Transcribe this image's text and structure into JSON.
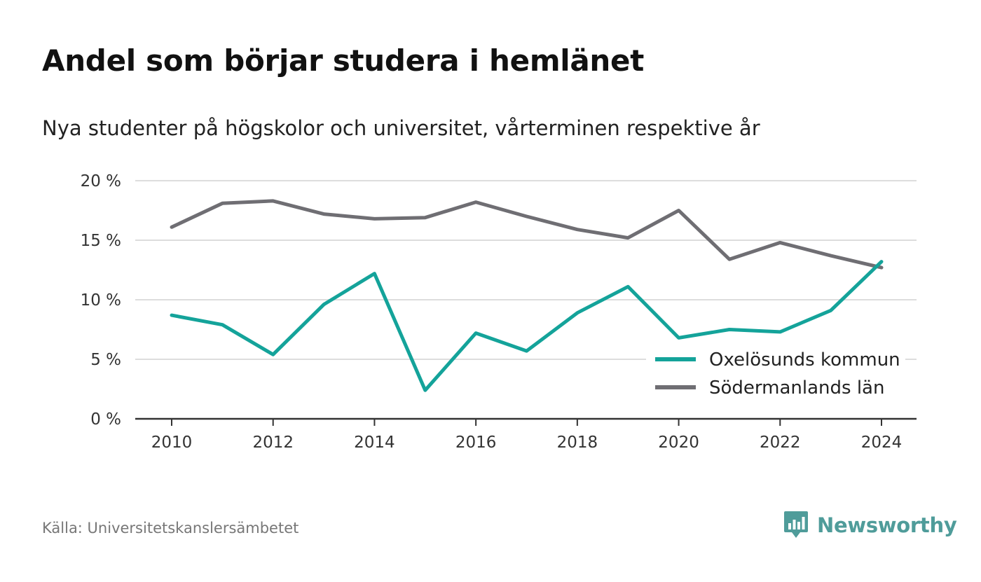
{
  "colors": {
    "oxelosund": "#14a39a",
    "sodermanland": "#6f6e73",
    "brand": "#4f9c9a"
  },
  "chart_data": {
    "type": "line",
    "title": "Andel som börjar studera i hemlänet",
    "subtitle": "Nya studenter på högskolor och universitet, vårterminen respektive år",
    "xlabel": "",
    "ylabel": "",
    "x": [
      2010,
      2011,
      2012,
      2013,
      2014,
      2015,
      2016,
      2017,
      2018,
      2019,
      2020,
      2021,
      2022,
      2023,
      2024
    ],
    "xticks": [
      "2010",
      "2012",
      "2014",
      "2016",
      "2018",
      "2020",
      "2022",
      "2024"
    ],
    "xlim": [
      2010,
      2024
    ],
    "ylim": [
      0,
      20
    ],
    "yticks": [
      0,
      5,
      10,
      15,
      20
    ],
    "ytick_labels": [
      "0 %",
      "5 %",
      "10 %",
      "15 %",
      "20 %"
    ],
    "grid": true,
    "legend_position": "bottom-right",
    "series": [
      {
        "name": "Oxelösunds kommun",
        "color": "#14a39a",
        "values": [
          8.7,
          7.9,
          5.4,
          9.6,
          12.2,
          2.4,
          7.2,
          5.7,
          8.9,
          11.1,
          6.8,
          7.5,
          7.3,
          9.1,
          13.2
        ]
      },
      {
        "name": "Södermanlands län",
        "color": "#6f6e73",
        "values": [
          16.1,
          18.1,
          18.3,
          17.2,
          16.8,
          16.9,
          18.2,
          17.0,
          15.9,
          15.2,
          17.5,
          13.4,
          14.8,
          13.7,
          12.7
        ]
      }
    ]
  },
  "footer": {
    "source": "Källa: Universitetskanslersämbetet",
    "brand": "Newsworthy"
  }
}
